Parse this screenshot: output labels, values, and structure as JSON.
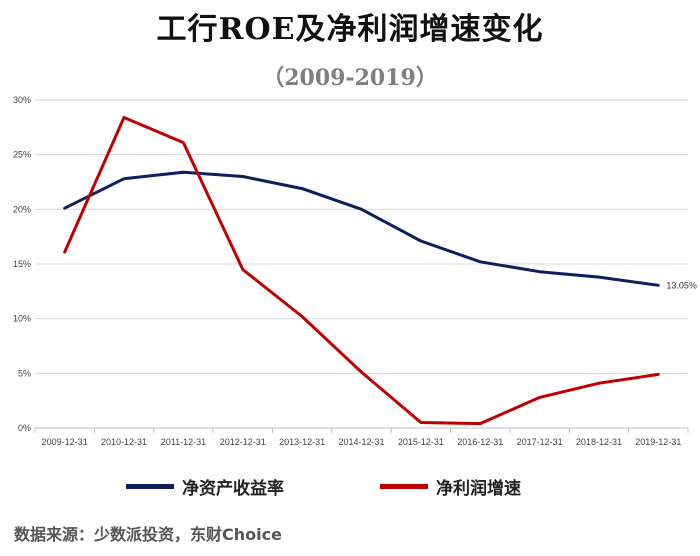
{
  "title": "工行ROE及净利润增速变化",
  "subtitle": "（2009-2019）",
  "source": "数据来源：少数派投资，东财Choice",
  "colors": {
    "roe": "#0d1f5c",
    "profit": "#c00000",
    "grid": "#d9d9d9"
  },
  "chart_data": {
    "type": "line",
    "categories": [
      "2009-12-31",
      "2010-12-31",
      "2011-12-31",
      "2012-12-31",
      "2013-12-31",
      "2014-12-31",
      "2015-12-31",
      "2016-12-31",
      "2017-12-31",
      "2018-12-31",
      "2019-12-31"
    ],
    "series": [
      {
        "name": "净资产收益率",
        "values": [
          20.1,
          22.8,
          23.4,
          23.0,
          21.9,
          20.0,
          17.1,
          15.2,
          14.3,
          13.8,
          13.05
        ]
      },
      {
        "name": "净利润增速",
        "values": [
          16.1,
          28.4,
          26.1,
          14.5,
          10.2,
          5.1,
          0.5,
          0.4,
          2.8,
          4.1,
          4.9
        ]
      }
    ],
    "y_ticks": [
      "0%",
      "5%",
      "10%",
      "15%",
      "20%",
      "25%",
      "30%"
    ],
    "ylim": [
      0,
      30
    ],
    "end_label": "13.05%",
    "grid": true,
    "legend_position": "bottom"
  }
}
